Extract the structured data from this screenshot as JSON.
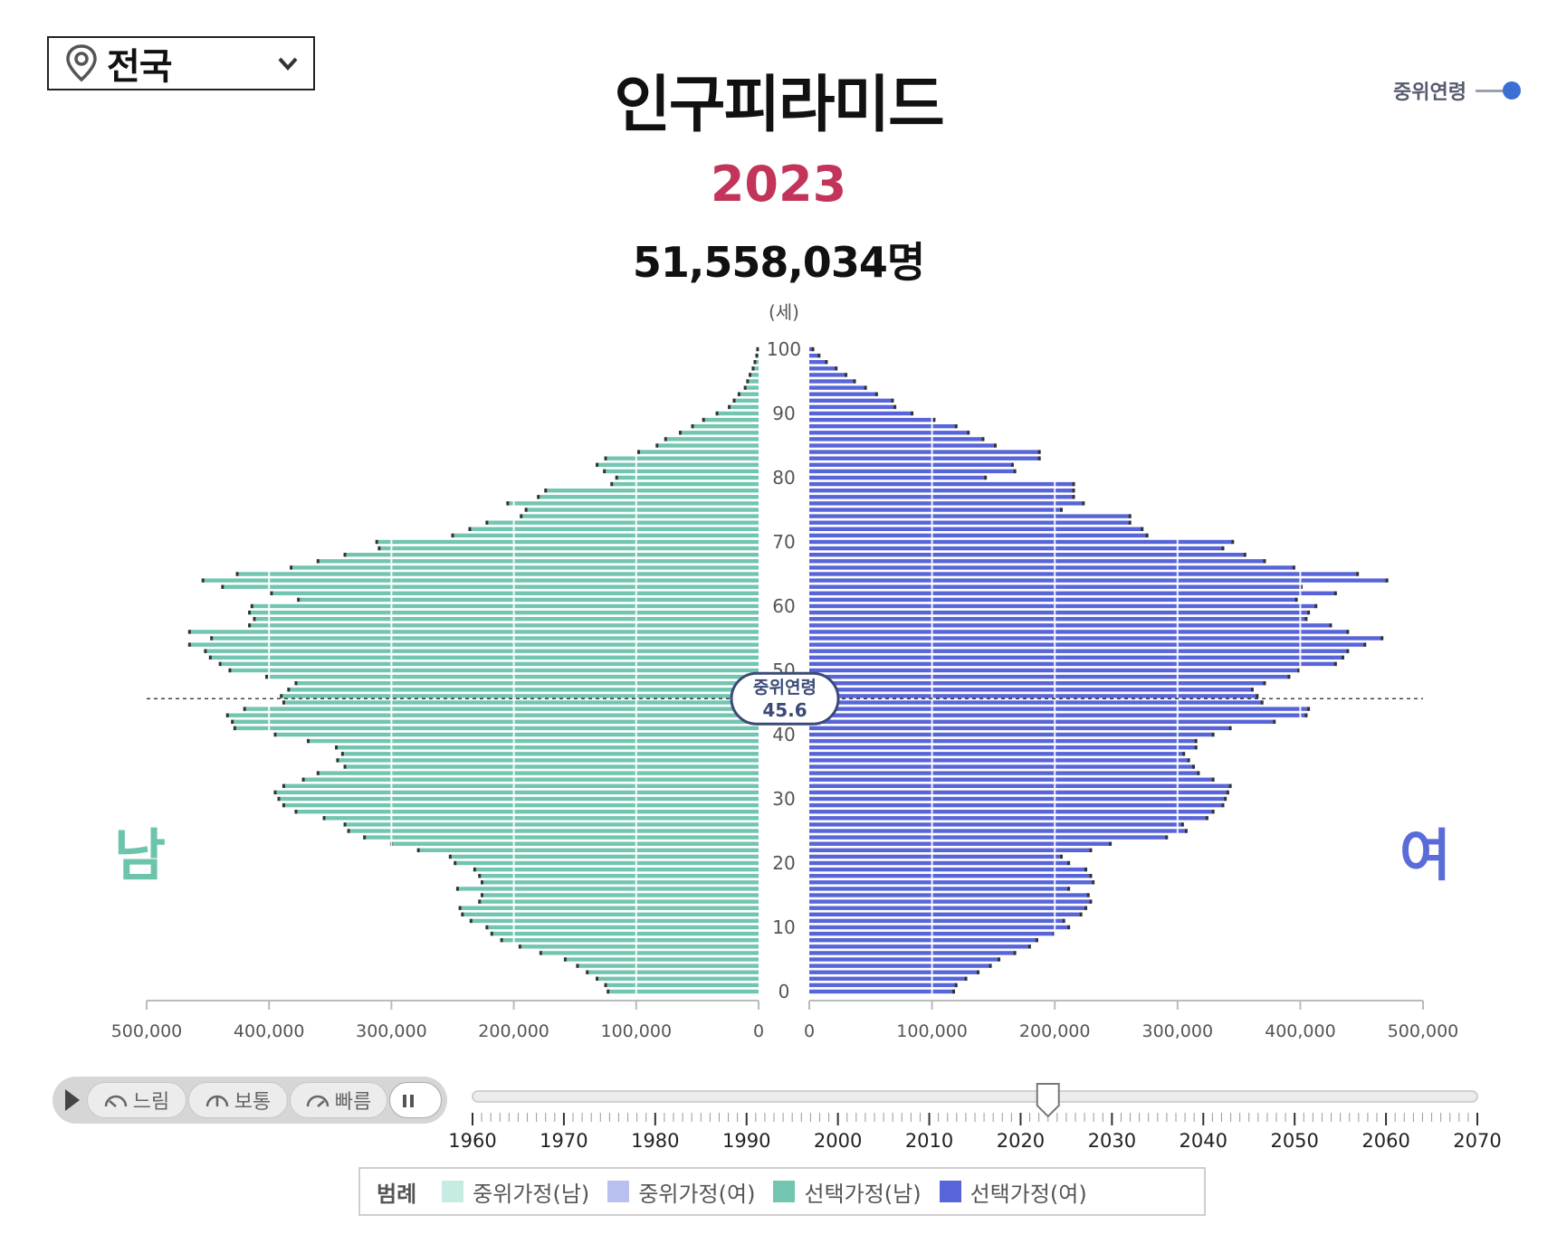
{
  "region": {
    "selected": "전국",
    "icon": "map-pin-icon"
  },
  "title": "인구피라미드",
  "year": "2023",
  "total_population": "51,558,034명",
  "median_toggle": {
    "label": "중위연령",
    "on": true
  },
  "sex_labels": {
    "male": "남",
    "female": "여"
  },
  "controls": {
    "play_icon": "play-icon",
    "speeds": [
      {
        "label": "느림",
        "icon": "gauge-slow-icon"
      },
      {
        "label": "보통",
        "icon": "gauge-normal-icon"
      },
      {
        "label": "빠름",
        "icon": "gauge-fast-icon"
      }
    ],
    "pause_icon": "pause-icon"
  },
  "timeline": {
    "start": 1960,
    "end": 2070,
    "current": 2023,
    "labels": [
      "1960",
      "1970",
      "1980",
      "1990",
      "2000",
      "2010",
      "2020",
      "2030",
      "2040",
      "2050",
      "2060",
      "2070"
    ]
  },
  "legend": {
    "title": "범례",
    "items": [
      {
        "label": "중위가정(남)",
        "color": "#c5ebe2"
      },
      {
        "label": "중위가정(여)",
        "color": "#b8c0ef"
      },
      {
        "label": "선택가정(남)",
        "color": "#72c5b0"
      },
      {
        "label": "선택가정(여)",
        "color": "#5865d9"
      }
    ]
  },
  "chart_data": {
    "type": "bar",
    "orientation": "horizontal-pyramid",
    "y_axis_label": "(세)",
    "ages_ticks": [
      "0",
      "10",
      "20",
      "30",
      "40",
      "50",
      "60",
      "70",
      "80",
      "90",
      "100"
    ],
    "x_ticks_male": [
      "500,000",
      "400,000",
      "300,000",
      "200,000",
      "100,000",
      "0"
    ],
    "x_ticks_female": [
      "0",
      "100,000",
      "200,000",
      "300,000",
      "400,000",
      "500,000"
    ],
    "xlim": [
      0,
      500000
    ],
    "age_range": [
      0,
      100
    ],
    "median_age": {
      "label": "중위연령",
      "value": "45.6"
    },
    "series": [
      {
        "name": "선택가정(남)",
        "side": "left",
        "color": "#72c5b0",
        "values": [
          123000,
          125000,
          132000,
          140000,
          148000,
          158000,
          178000,
          195000,
          210000,
          218000,
          222000,
          235000,
          242000,
          244000,
          228000,
          226000,
          246000,
          226000,
          228000,
          232000,
          248000,
          252000,
          278000,
          300000,
          322000,
          335000,
          338000,
          355000,
          378000,
          388000,
          392000,
          395000,
          388000,
          372000,
          360000,
          338000,
          344000,
          340000,
          345000,
          368000,
          395000,
          428000,
          430000,
          434000,
          420000,
          388000,
          390000,
          384000,
          378000,
          402000,
          432000,
          440000,
          448000,
          452000,
          465000,
          447000,
          465000,
          416000,
          412000,
          416000,
          414000,
          376000,
          398000,
          438000,
          454000,
          426000,
          382000,
          360000,
          338000,
          310000,
          312000,
          250000,
          236000,
          222000,
          194000,
          190000,
          205000,
          180000,
          174000,
          120000,
          116000,
          126000,
          132000,
          125000,
          98000,
          83000,
          76000,
          64000,
          54000,
          45000,
          34000,
          24000,
          20000,
          16000,
          11000,
          9000,
          7000,
          4500,
          3000,
          1500,
          800
        ]
      },
      {
        "name": "선택가정(여)",
        "side": "right",
        "color": "#5865d9",
        "values": [
          118000,
          120000,
          128000,
          138000,
          148000,
          155000,
          168000,
          180000,
          186000,
          200000,
          212000,
          208000,
          222000,
          226000,
          230000,
          228000,
          212000,
          232000,
          230000,
          226000,
          212000,
          206000,
          230000,
          246000,
          292000,
          308000,
          305000,
          325000,
          330000,
          338000,
          340000,
          342000,
          344000,
          330000,
          318000,
          314000,
          310000,
          306000,
          316000,
          316000,
          330000,
          344000,
          380000,
          406000,
          408000,
          370000,
          366000,
          362000,
          372000,
          392000,
          400000,
          430000,
          436000,
          440000,
          454000,
          468000,
          440000,
          426000,
          406000,
          408000,
          414000,
          398000,
          430000,
          402000,
          472000,
          448000,
          396000,
          372000,
          356000,
          338000,
          346000,
          276000,
          272000,
          262000,
          262000,
          206000,
          224000,
          216000,
          216000,
          216000,
          144000,
          168000,
          166000,
          188000,
          188000,
          152000,
          142000,
          130000,
          120000,
          102000,
          84000,
          70000,
          68000,
          55000,
          46000,
          37000,
          30000,
          22000,
          14000,
          8000,
          3000
        ]
      }
    ]
  }
}
